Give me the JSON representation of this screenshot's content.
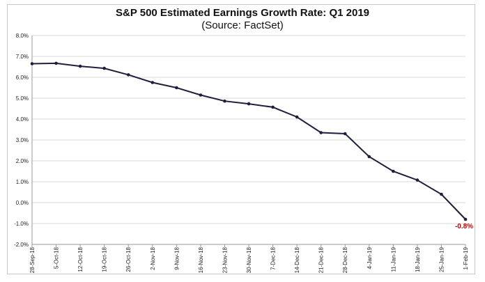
{
  "chart_data": {
    "type": "line",
    "title": "S&P 500 Estimated Earnings Growth Rate: Q1 2019",
    "subtitle": "(Source: FactSet)",
    "xlabel": "",
    "ylabel": "",
    "x": [
      "28-Sep-18",
      "5-Oct-18",
      "12-Oct-18",
      "19-Oct-18",
      "26-Oct-18",
      "2-Nov-18",
      "9-Nov-18",
      "16-Nov-18",
      "23-Nov-18",
      "30-Nov-18",
      "7-Dec-18",
      "14-Dec-18",
      "21-Dec-18",
      "28-Dec-18",
      "4-Jan-19",
      "11-Jan-19",
      "18-Jan-19",
      "25-Jan-19",
      "1-Feb-19"
    ],
    "values": [
      6.65,
      6.67,
      6.53,
      6.43,
      6.12,
      5.75,
      5.5,
      5.15,
      4.86,
      4.73,
      4.57,
      4.1,
      3.35,
      3.3,
      2.2,
      1.5,
      1.08,
      0.4,
      -0.8
    ],
    "ylim": [
      -2.0,
      8.0
    ],
    "yticks": [
      "8.0%",
      "7.0%",
      "6.0%",
      "5.0%",
      "4.0%",
      "3.0%",
      "2.0%",
      "1.0%",
      "0.0%",
      "-1.0%",
      "-2.0%"
    ],
    "ytick_values": [
      8,
      7,
      6,
      5,
      4,
      3,
      2,
      1,
      0,
      -1,
      -2
    ],
    "grid": true,
    "end_label": "-0.8%",
    "line_color": "#1f1f3d",
    "label_color": "#c00000"
  }
}
